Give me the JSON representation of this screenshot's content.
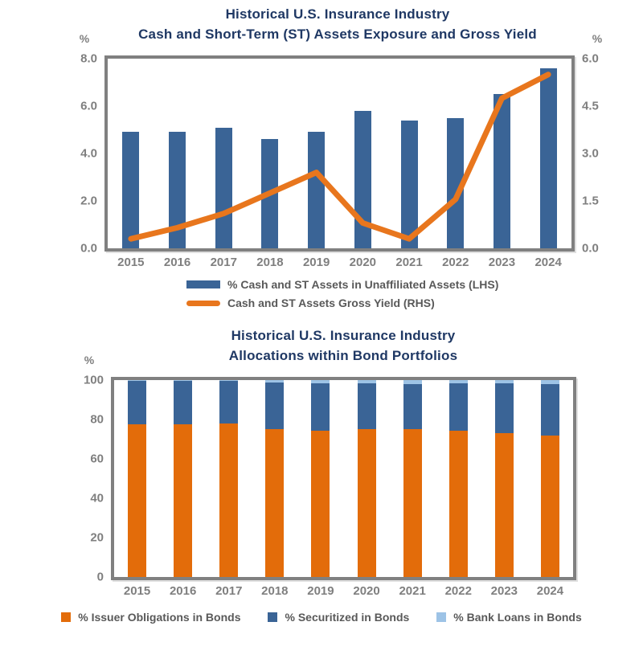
{
  "colors": {
    "title": "#1F3864",
    "axis_text": "#7F7F7F",
    "legend_text": "#595959",
    "plot_border": "#808080",
    "bar_blue": "#3A6496",
    "line_orange": "#E8761D",
    "issuer_orange": "#E36C0A",
    "securitized_blue": "#3A6496",
    "bank_loans_light_blue": "#9DC3E6"
  },
  "chart_data": [
    {
      "type": "combo_bar_line",
      "title_lines": [
        "Historical U.S. Insurance Industry",
        "Cash and Short-Term (ST) Assets Exposure and Gross Yield"
      ],
      "axis_left_label": "%",
      "axis_right_label": "%",
      "categories": [
        "2015",
        "2016",
        "2017",
        "2018",
        "2019",
        "2020",
        "2021",
        "2022",
        "2023",
        "2024"
      ],
      "left_axis": {
        "ticks": [
          "8.0",
          "6.0",
          "4.0",
          "2.0",
          "0.0"
        ],
        "min": 0,
        "max": 8
      },
      "right_axis": {
        "ticks": [
          "6.0",
          "4.5",
          "3.0",
          "1.5",
          "0.0"
        ],
        "min": 0,
        "max": 6
      },
      "grid": false,
      "legend_position": "bottom-left-aligned-column",
      "series": [
        {
          "name": "% Cash and ST Assets in Unaffiliated Assets (LHS)",
          "type": "bar",
          "axis": "left",
          "color": "#3A6496",
          "values": [
            4.9,
            4.9,
            5.1,
            4.6,
            4.9,
            5.8,
            5.4,
            5.5,
            6.5,
            7.6
          ]
        },
        {
          "name": "Cash and ST Assets Gross Yield (RHS)",
          "type": "line",
          "axis": "right",
          "color": "#E8761D",
          "values": [
            0.3,
            0.65,
            1.1,
            1.75,
            2.4,
            0.8,
            0.3,
            1.55,
            4.75,
            5.5
          ]
        }
      ]
    },
    {
      "type": "stacked_bar",
      "title_lines": [
        "Historical U.S. Insurance Industry",
        "Allocations within Bond Portfolios"
      ],
      "axis_left_label": "%",
      "categories": [
        "2015",
        "2016",
        "2017",
        "2018",
        "2019",
        "2020",
        "2021",
        "2022",
        "2023",
        "2024"
      ],
      "left_axis": {
        "ticks": [
          "100",
          "80",
          "60",
          "40",
          "20",
          "0"
        ],
        "min": 0,
        "max": 100
      },
      "grid": false,
      "legend_position": "bottom-centered-row",
      "series": [
        {
          "name": "% Issuer Obligations in Bonds",
          "color": "#E36C0A",
          "values": [
            77.6,
            77.6,
            77.8,
            75.1,
            74.3,
            75.0,
            75.0,
            74.2,
            73.1,
            71.8
          ]
        },
        {
          "name": "% Securitized in Bonds",
          "color": "#3A6496",
          "values": [
            22.1,
            22.1,
            21.8,
            23.7,
            24.1,
            23.4,
            23.0,
            24.2,
            25.3,
            26.2
          ]
        },
        {
          "name": "% Bank Loans in Bonds",
          "color": "#9DC3E6",
          "values": [
            0.3,
            0.3,
            0.4,
            1.2,
            1.6,
            1.6,
            2.0,
            1.6,
            1.6,
            2.0
          ]
        }
      ]
    }
  ]
}
